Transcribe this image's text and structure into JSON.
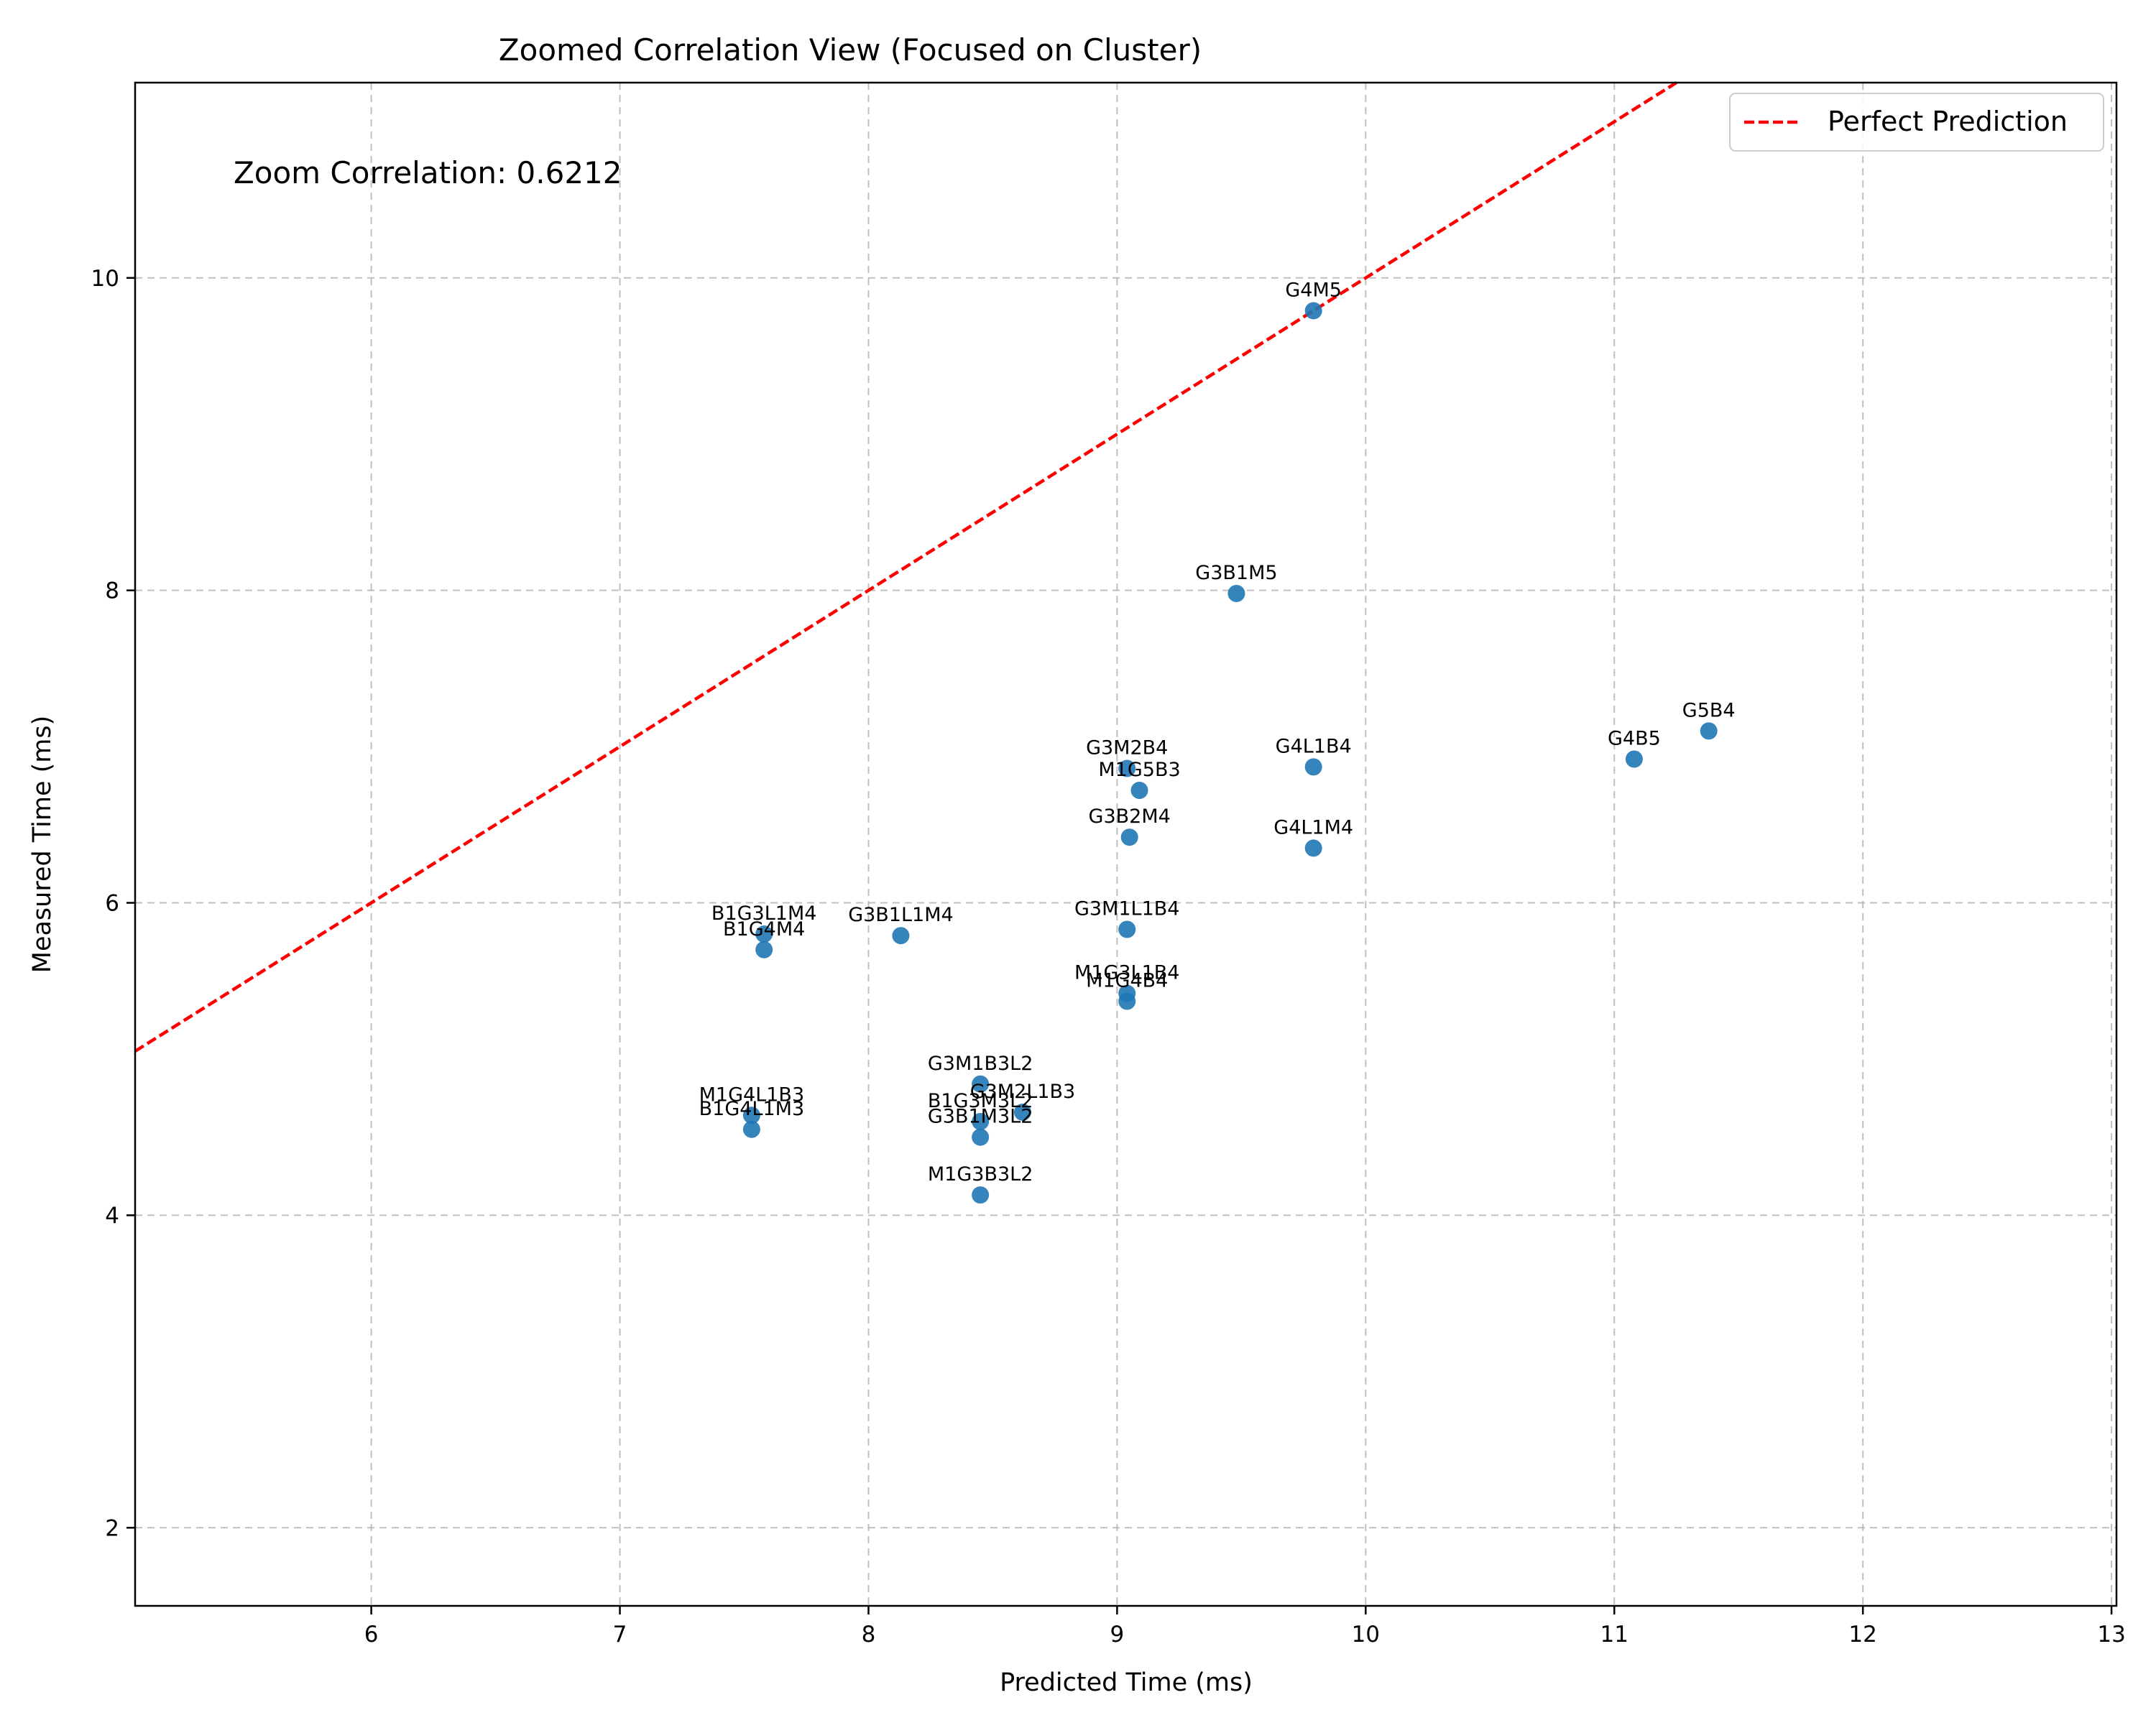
{
  "chart_data": {
    "type": "scatter",
    "title": "Zoomed Correlation View (Focused on Cluster)",
    "xlabel": "Predicted Time (ms)",
    "ylabel": "Measured Time (ms)",
    "xlim": [
      5.05,
      13.02
    ],
    "ylim": [
      1.5,
      11.25
    ],
    "xticks": [
      6,
      7,
      8,
      9,
      10,
      11,
      12,
      13
    ],
    "yticks": [
      2,
      4,
      6,
      8,
      10
    ],
    "grid": true,
    "legend": {
      "placement": "top-right",
      "entries": [
        "Perfect Prediction"
      ]
    },
    "annotation": "Zoom Correlation: 0.6212",
    "colors": {
      "points": "#1f77b4",
      "line": "#ff0000",
      "grid": "#b0b0b0"
    },
    "reference_line": {
      "name": "Perfect Prediction",
      "slope": 1,
      "intercept": 0
    },
    "points": [
      {
        "label": "G4M5",
        "x": 9.79,
        "y": 9.79
      },
      {
        "label": "G3B1M5",
        "x": 9.48,
        "y": 7.98
      },
      {
        "label": "G5B4",
        "x": 11.38,
        "y": 7.1
      },
      {
        "label": "G4B5",
        "x": 11.08,
        "y": 6.92
      },
      {
        "label": "G4L1B4",
        "x": 9.79,
        "y": 6.87
      },
      {
        "label": "G3M2B4",
        "x": 9.04,
        "y": 6.86
      },
      {
        "label": "M1G5B3",
        "x": 9.09,
        "y": 6.72
      },
      {
        "label": "G3B2M4",
        "x": 9.05,
        "y": 6.42
      },
      {
        "label": "G4L1M4",
        "x": 9.79,
        "y": 6.35
      },
      {
        "label": "G3M1L1B4",
        "x": 9.04,
        "y": 5.83
      },
      {
        "label": "G3B1L1M4",
        "x": 8.13,
        "y": 5.79
      },
      {
        "label": "B1G3L1M4",
        "x": 7.58,
        "y": 5.8
      },
      {
        "label": "B1G4M4",
        "x": 7.58,
        "y": 5.7
      },
      {
        "label": "M1G3L1B4",
        "x": 9.04,
        "y": 5.42
      },
      {
        "label": "M1G4B4",
        "x": 9.04,
        "y": 5.37
      },
      {
        "label": "G3M1B3L2",
        "x": 8.45,
        "y": 4.84
      },
      {
        "label": "G3M2L1B3",
        "x": 8.62,
        "y": 4.66
      },
      {
        "label": "B1G3M3L2",
        "x": 8.45,
        "y": 4.6
      },
      {
        "label": "G3B1M3L2",
        "x": 8.45,
        "y": 4.5
      },
      {
        "label": "M1G4L1B3",
        "x": 7.53,
        "y": 4.64
      },
      {
        "label": "B1G4L1M3",
        "x": 7.53,
        "y": 4.55
      },
      {
        "label": "M1G3B3L2",
        "x": 8.45,
        "y": 4.13
      }
    ]
  }
}
